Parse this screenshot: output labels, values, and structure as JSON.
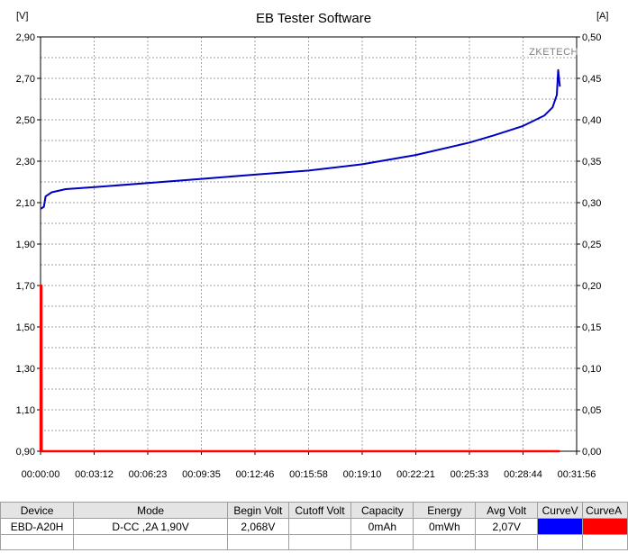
{
  "window": {
    "title": "EB Tester Software"
  },
  "chart_data": {
    "type": "line",
    "title": "EB Tester Software",
    "watermark": "ZKETECH",
    "ylabel_left": "[V]",
    "ylabel_right": "[A]",
    "xlim_seconds": [
      0,
      1916
    ],
    "ylim_left": [
      0.9,
      2.9
    ],
    "ylim_right": [
      0.0,
      0.5
    ],
    "grid": true,
    "x_ticks": [
      "00:00:00",
      "00:03:12",
      "00:06:23",
      "00:09:35",
      "00:12:46",
      "00:15:58",
      "00:19:10",
      "00:22:21",
      "00:25:33",
      "00:28:44",
      "00:31:56"
    ],
    "y_left_ticks": [
      "2,90",
      "2,70",
      "2,50",
      "2,30",
      "2,10",
      "1,90",
      "1,70",
      "1,50",
      "1,30",
      "1,10",
      "0,90"
    ],
    "y_right_ticks": [
      "0,50",
      "0,45",
      "0,40",
      "0,35",
      "0,30",
      "0,25",
      "0,20",
      "0,15",
      "0,10",
      "0,05",
      "0,00"
    ],
    "series": [
      {
        "axis": "left",
        "color": "#0000c0",
        "x_time": [
          "00:00:00",
          "00:00:12",
          "00:00:18",
          "00:00:40",
          "00:01:30",
          "00:03:12",
          "00:06:23",
          "00:09:35",
          "00:12:46",
          "00:15:58",
          "00:19:10",
          "00:22:21",
          "00:25:33",
          "00:27:00",
          "00:28:44",
          "00:30:00",
          "00:30:30",
          "00:30:45",
          "00:30:50",
          "00:30:53",
          "00:30:56"
        ],
        "x": [
          0,
          12,
          18,
          40,
          90,
          192,
          383,
          575,
          766,
          958,
          1150,
          1341,
          1533,
          1620,
          1724,
          1800,
          1830,
          1845,
          1850,
          1853,
          1856
        ],
        "y": [
          2.07,
          2.08,
          2.13,
          2.15,
          2.165,
          2.175,
          2.195,
          2.215,
          2.235,
          2.255,
          2.285,
          2.33,
          2.39,
          2.425,
          2.47,
          2.52,
          2.56,
          2.62,
          2.74,
          2.7,
          2.66
        ]
      },
      {
        "axis": "right",
        "color": "#ff0000",
        "x_time": [
          "00:00:00",
          "00:00:01",
          "00:00:03",
          "00:00:04",
          "00:30:56"
        ],
        "x": [
          0,
          1,
          3,
          4,
          1856
        ],
        "y": [
          0.0,
          0.2,
          0.2,
          0.0,
          0.0
        ]
      }
    ]
  },
  "summary": {
    "headers": [
      "Device",
      "Mode",
      "Begin Volt",
      "Cutoff Volt",
      "Capacity",
      "Energy",
      "Avg Volt",
      "CurveV",
      "CurveA"
    ],
    "row": {
      "device": "EBD-A20H",
      "mode": "D-CC  ,2A  1,90V",
      "begin_volt": "2,068V",
      "cutoff_volt": "",
      "capacity": "0mAh",
      "energy": "0mWh",
      "avg_volt": "2,07V",
      "curve_v_color": "#0000ff",
      "curve_a_color": "#ff0000"
    }
  }
}
